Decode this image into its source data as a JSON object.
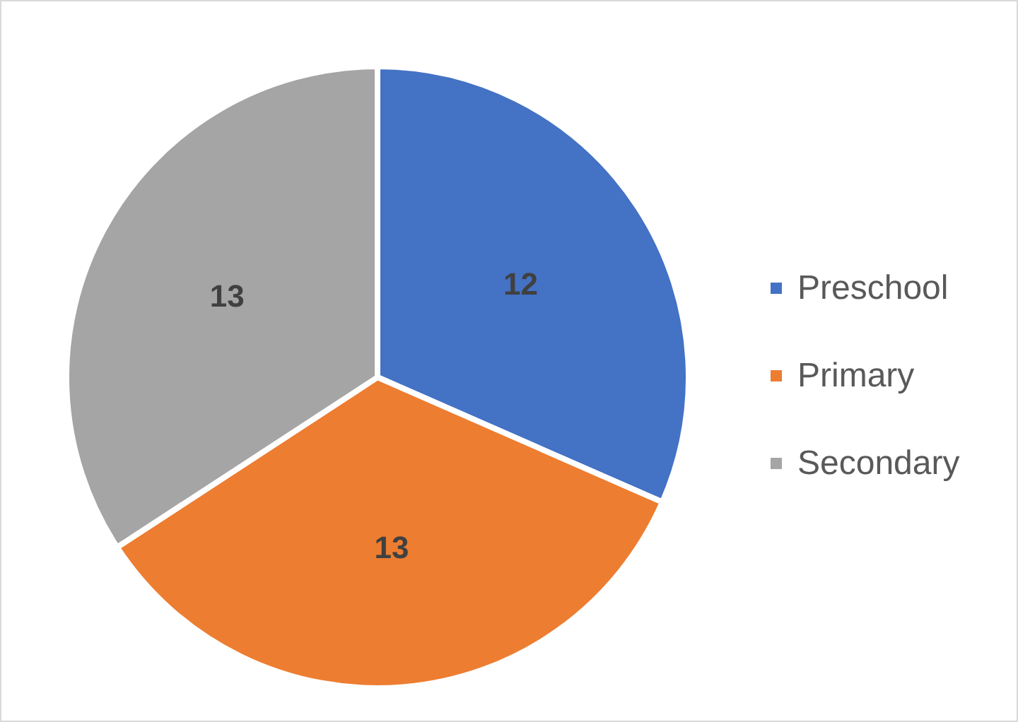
{
  "chart_data": {
    "type": "pie",
    "categories": [
      "Preschool",
      "Primary",
      "Secondary"
    ],
    "values": [
      12,
      13,
      13
    ],
    "colors": [
      "#4472c4",
      "#ed7d31",
      "#a5a5a5"
    ],
    "data_labels": true,
    "legend": "right"
  }
}
